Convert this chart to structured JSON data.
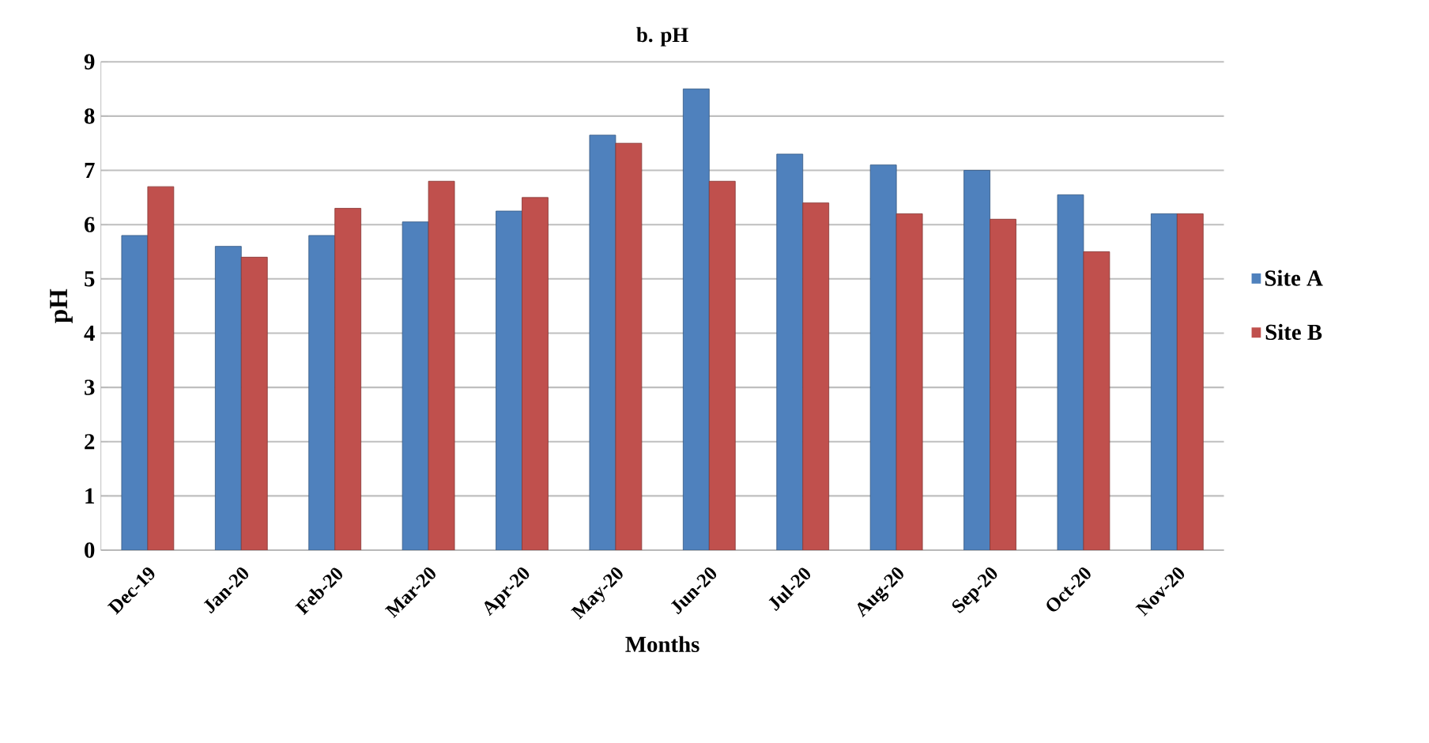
{
  "chart_data": {
    "type": "bar",
    "title": "b. pH",
    "xlabel": "Months",
    "ylabel": "pH",
    "categories": [
      "Dec-19",
      "Jan-20",
      "Feb-20",
      "Mar-20",
      "Apr-20",
      "May-20",
      "Jun-20",
      "Jul-20",
      "Aug-20",
      "Sep-20",
      "Oct-20",
      "Nov-20"
    ],
    "series": [
      {
        "name": "Site A",
        "color": "#4f81bd",
        "values": [
          5.8,
          5.6,
          5.8,
          6.05,
          6.25,
          7.65,
          8.5,
          7.3,
          7.1,
          7.0,
          6.55,
          6.2
        ]
      },
      {
        "name": "Site B",
        "color": "#c0504d",
        "values": [
          6.7,
          5.4,
          6.3,
          6.8,
          6.5,
          7.5,
          6.8,
          6.4,
          6.2,
          6.1,
          5.5,
          6.2
        ]
      }
    ],
    "ylim": [
      0,
      9
    ],
    "yticks": [
      0,
      1,
      2,
      3,
      4,
      5,
      6,
      7,
      8,
      9
    ],
    "grid": "y",
    "legend": "right"
  }
}
